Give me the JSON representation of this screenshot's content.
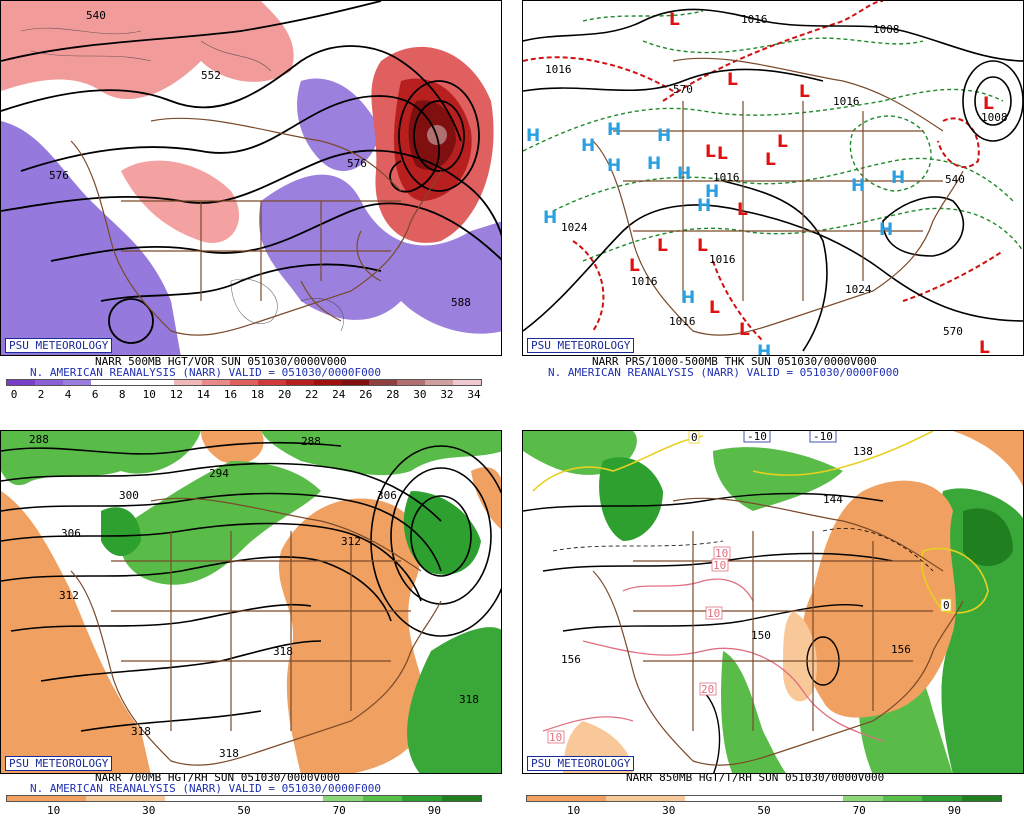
{
  "panels": [
    {
      "id": "p1",
      "badge": "PSU METEOROLOGY",
      "caption1": "NARR 500MB HGT/VOR SUN 051030/0000V000",
      "caption2": "N. AMERICAN REANALYSIS (NARR) VALID = 051030/0000F000",
      "contour_labels": [
        "540",
        "552",
        "576",
        "576",
        "588"
      ],
      "colorbar": {
        "colors": [
          "#7a3fc8",
          "#8b5fd6",
          "#9b7fe0",
          "#ffffff",
          "#ffffff",
          "#ffffff",
          "#f0b8b8",
          "#e88a8a",
          "#e06060",
          "#d03a3a",
          "#b82020",
          "#a01010",
          "#801010",
          "#904040",
          "#b07070",
          "#d0a0a0",
          "#f0c8d0"
        ],
        "ticks": [
          "0",
          "2",
          "4",
          "6",
          "8",
          "10",
          "12",
          "14",
          "16",
          "18",
          "20",
          "22",
          "24",
          "26",
          "28",
          "30",
          "32",
          "34"
        ]
      }
    },
    {
      "id": "p2",
      "badge": "PSU METEOROLOGY",
      "caption1": "NARR PRS/1000-500MB THK SUN 051030/0000V000",
      "caption2": "N. AMERICAN REANALYSIS (NARR) VALID = 051030/0000F000",
      "contour_labels": [
        "1016",
        "1016",
        "1008",
        "1016",
        "1008",
        "1024",
        "1016",
        "1016",
        "1016",
        "1024",
        "1016",
        "570",
        "540",
        "570"
      ],
      "high_label": "H",
      "low_label": "L"
    },
    {
      "id": "p3",
      "badge": "PSU METEOROLOGY",
      "caption1": "NARR 700MB HGT/RH SUN 051030/0000V000",
      "caption2": "N. AMERICAN REANALYSIS (NARR) VALID = 051030/0000F000",
      "contour_labels": [
        "288",
        "288",
        "294",
        "300",
        "306",
        "306",
        "312",
        "312",
        "318",
        "318",
        "318",
        "318"
      ],
      "colorbar": {
        "colors": [
          "#f0a060",
          "#f0a060",
          "#f8c898",
          "#f8c898",
          "#ffffff",
          "#ffffff",
          "#ffffff",
          "#ffffff",
          "#8ad878",
          "#58c048",
          "#2ea030",
          "#208020"
        ],
        "ticks": [
          "10",
          "30",
          "50",
          "70",
          "90"
        ]
      }
    },
    {
      "id": "p4",
      "badge": "PSU METEOROLOGY",
      "caption1": "NARR 850MB HGT/T/RH SUN 051030/0000V000",
      "caption2": "",
      "contour_labels": [
        "-10",
        "-10",
        "138",
        "144",
        "156",
        "156",
        "150",
        "0",
        "0",
        "10",
        "10",
        "10",
        "20",
        "10"
      ],
      "colorbar": {
        "colors": [
          "#f0a060",
          "#f0a060",
          "#f8c898",
          "#f8c898",
          "#ffffff",
          "#ffffff",
          "#ffffff",
          "#ffffff",
          "#8ad878",
          "#58c048",
          "#2ea030",
          "#208020"
        ],
        "ticks": [
          "10",
          "30",
          "50",
          "70",
          "90"
        ]
      }
    }
  ]
}
